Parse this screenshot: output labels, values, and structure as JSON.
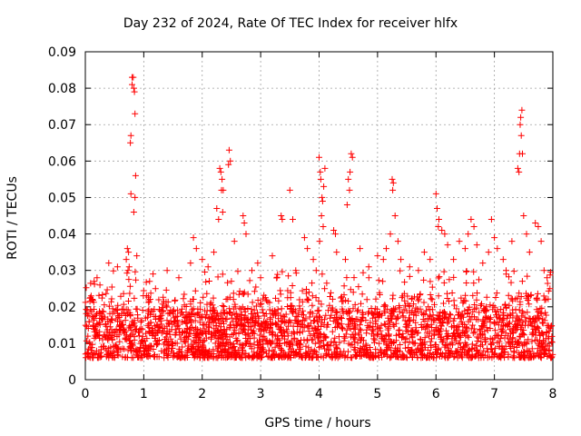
{
  "chart_data": {
    "type": "scatter",
    "title": "Day 232 of 2024, Rate Of TEC Index for receiver hlfx",
    "xlabel": "GPS time / hours",
    "ylabel": "ROTI / TECUs",
    "xlim": [
      0,
      8
    ],
    "ylim": [
      0,
      0.09
    ],
    "xticks": [
      "0",
      "1",
      "2",
      "3",
      "4",
      "5",
      "6",
      "7",
      "8"
    ],
    "yticks": [
      "0",
      "0.01",
      "0.02",
      "0.03",
      "0.04",
      "0.05",
      "0.06",
      "0.07",
      "0.08",
      "0.09"
    ],
    "grid": true,
    "marker": "plus",
    "series_color": "#ff0000",
    "points": [
      [
        0.8,
        0.083
      ],
      [
        0.82,
        0.083
      ],
      [
        0.8,
        0.081
      ],
      [
        0.83,
        0.08
      ],
      [
        0.84,
        0.079
      ],
      [
        0.85,
        0.073
      ],
      [
        0.78,
        0.067
      ],
      [
        0.77,
        0.065
      ],
      [
        0.86,
        0.056
      ],
      [
        0.78,
        0.051
      ],
      [
        0.85,
        0.05
      ],
      [
        0.83,
        0.046
      ],
      [
        0.72,
        0.036
      ],
      [
        0.74,
        0.035
      ],
      [
        0.7,
        0.033
      ],
      [
        0.75,
        0.031
      ],
      [
        0.73,
        0.03
      ],
      [
        0.88,
        0.034
      ],
      [
        0.15,
        0.027
      ],
      [
        0.2,
        0.028
      ],
      [
        0.4,
        0.032
      ],
      [
        0.55,
        0.031
      ],
      [
        0.1,
        0.023
      ],
      [
        0.25,
        0.026
      ],
      [
        1.1,
        0.027
      ],
      [
        1.2,
        0.025
      ],
      [
        1.4,
        0.03
      ],
      [
        1.6,
        0.028
      ],
      [
        1.8,
        0.032
      ],
      [
        1.85,
        0.039
      ],
      [
        1.9,
        0.036
      ],
      [
        2.0,
        0.033
      ],
      [
        2.1,
        0.031
      ],
      [
        2.2,
        0.035
      ],
      [
        2.25,
        0.047
      ],
      [
        2.3,
        0.058
      ],
      [
        2.32,
        0.057
      ],
      [
        2.34,
        0.055
      ],
      [
        2.33,
        0.052
      ],
      [
        2.36,
        0.052
      ],
      [
        2.28,
        0.044
      ],
      [
        2.35,
        0.046
      ],
      [
        2.46,
        0.063
      ],
      [
        2.48,
        0.06
      ],
      [
        2.45,
        0.059
      ],
      [
        2.55,
        0.038
      ],
      [
        2.7,
        0.045
      ],
      [
        2.72,
        0.043
      ],
      [
        2.75,
        0.04
      ],
      [
        2.85,
        0.03
      ],
      [
        2.95,
        0.032
      ],
      [
        3.0,
        0.028
      ],
      [
        3.2,
        0.034
      ],
      [
        3.35,
        0.045
      ],
      [
        3.37,
        0.044
      ],
      [
        3.5,
        0.052
      ],
      [
        3.55,
        0.044
      ],
      [
        3.6,
        0.03
      ],
      [
        3.75,
        0.039
      ],
      [
        3.8,
        0.036
      ],
      [
        3.9,
        0.033
      ],
      [
        3.95,
        0.03
      ],
      [
        4.0,
        0.061
      ],
      [
        4.02,
        0.057
      ],
      [
        4.03,
        0.055
      ],
      [
        4.05,
        0.05
      ],
      [
        4.06,
        0.049
      ],
      [
        4.04,
        0.045
      ],
      [
        4.07,
        0.042
      ],
      [
        4.01,
        0.038
      ],
      [
        4.1,
        0.058
      ],
      [
        4.08,
        0.053
      ],
      [
        4.25,
        0.041
      ],
      [
        4.28,
        0.04
      ],
      [
        4.3,
        0.035
      ],
      [
        4.45,
        0.033
      ],
      [
        4.55,
        0.062
      ],
      [
        4.57,
        0.061
      ],
      [
        4.53,
        0.057
      ],
      [
        4.5,
        0.055
      ],
      [
        4.52,
        0.052
      ],
      [
        4.48,
        0.048
      ],
      [
        4.7,
        0.036
      ],
      [
        4.85,
        0.031
      ],
      [
        5.0,
        0.034
      ],
      [
        5.1,
        0.033
      ],
      [
        5.15,
        0.036
      ],
      [
        5.25,
        0.055
      ],
      [
        5.27,
        0.054
      ],
      [
        5.26,
        0.052
      ],
      [
        5.3,
        0.045
      ],
      [
        5.22,
        0.04
      ],
      [
        5.35,
        0.038
      ],
      [
        5.4,
        0.033
      ],
      [
        5.55,
        0.031
      ],
      [
        5.7,
        0.03
      ],
      [
        5.8,
        0.035
      ],
      [
        5.9,
        0.033
      ],
      [
        6.0,
        0.051
      ],
      [
        6.02,
        0.047
      ],
      [
        6.05,
        0.044
      ],
      [
        6.04,
        0.042
      ],
      [
        6.1,
        0.041
      ],
      [
        6.15,
        0.04
      ],
      [
        6.2,
        0.037
      ],
      [
        6.3,
        0.033
      ],
      [
        6.4,
        0.038
      ],
      [
        6.5,
        0.036
      ],
      [
        6.55,
        0.04
      ],
      [
        6.6,
        0.044
      ],
      [
        6.65,
        0.042
      ],
      [
        6.7,
        0.037
      ],
      [
        6.8,
        0.032
      ],
      [
        6.9,
        0.035
      ],
      [
        6.95,
        0.044
      ],
      [
        7.0,
        0.039
      ],
      [
        7.05,
        0.036
      ],
      [
        7.15,
        0.033
      ],
      [
        7.2,
        0.03
      ],
      [
        7.3,
        0.038
      ],
      [
        7.4,
        0.058
      ],
      [
        7.42,
        0.057
      ],
      [
        7.44,
        0.07
      ],
      [
        7.45,
        0.072
      ],
      [
        7.47,
        0.074
      ],
      [
        7.46,
        0.067
      ],
      [
        7.43,
        0.062
      ],
      [
        7.48,
        0.062
      ],
      [
        7.5,
        0.045
      ],
      [
        7.55,
        0.04
      ],
      [
        7.6,
        0.035
      ],
      [
        7.7,
        0.043
      ],
      [
        7.75,
        0.042
      ],
      [
        7.8,
        0.038
      ],
      [
        7.85,
        0.03
      ],
      [
        7.9,
        0.028
      ],
      [
        7.95,
        0.025
      ],
      [
        7.88,
        0.022
      ]
    ],
    "bulk_cloud": {
      "description": "dense band of many points filling the entire time range",
      "x_range": [
        0,
        8
      ],
      "y_typical_range": [
        0.003,
        0.02
      ],
      "y_sparse_max": 0.03
    }
  }
}
